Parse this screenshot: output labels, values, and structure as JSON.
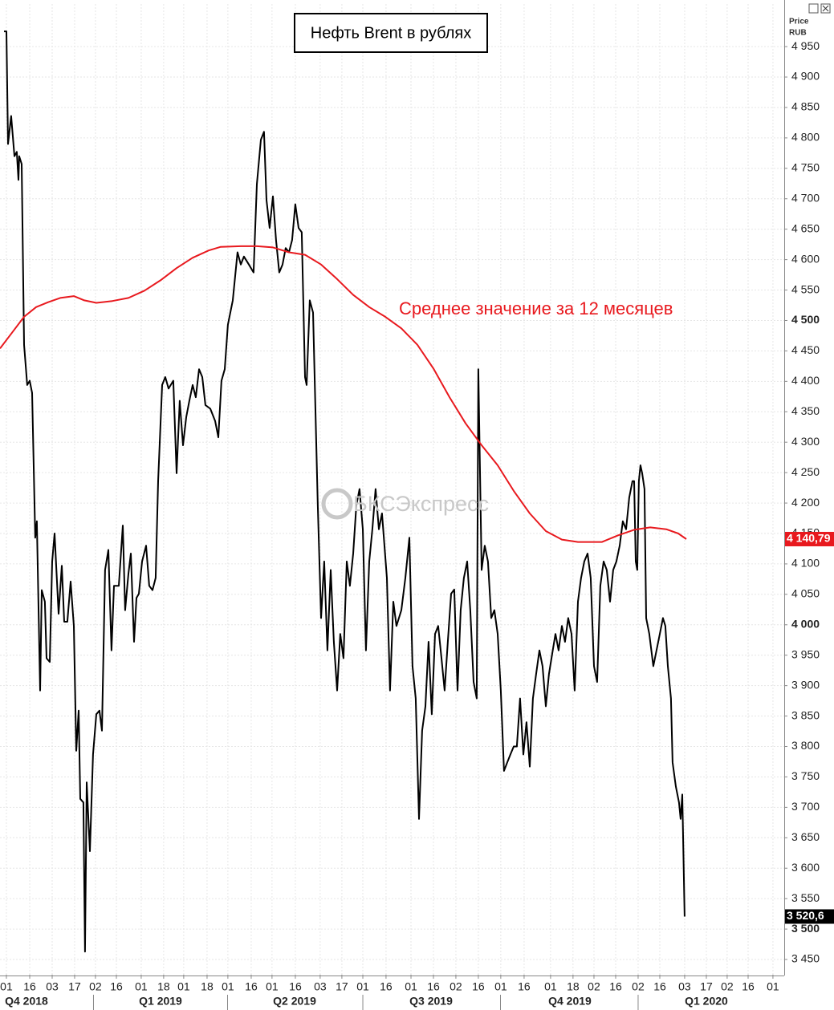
{
  "chart_data": {
    "type": "line",
    "title": "Нефть Brent в рублях",
    "annotation": "Среднее значение за 12 месяцев",
    "watermark": "БКСЭкспресс",
    "ylabel": "Price",
    "yunit": "RUB",
    "grid": true,
    "xlim": [
      -4.3,
      523.3
    ],
    "ylim": [
      3425,
      5020
    ],
    "yticks": [
      {
        "value": 3450,
        "label": "3 450"
      },
      {
        "value": 3500,
        "label": "3 500"
      },
      {
        "value": 3550,
        "label": "3 550"
      },
      {
        "value": 3600,
        "label": "3 600"
      },
      {
        "value": 3650,
        "label": "3 650"
      },
      {
        "value": 3700,
        "label": "3 700"
      },
      {
        "value": 3750,
        "label": "3 750"
      },
      {
        "value": 3800,
        "label": "3 800"
      },
      {
        "value": 3850,
        "label": "3 850"
      },
      {
        "value": 3900,
        "label": "3 900"
      },
      {
        "value": 3950,
        "label": "3 950"
      },
      {
        "value": 4000,
        "label": "4 000"
      },
      {
        "value": 4050,
        "label": "4 050"
      },
      {
        "value": 4100,
        "label": "4 100"
      },
      {
        "value": 4150,
        "label": "4 150"
      },
      {
        "value": 4200,
        "label": "4 200"
      },
      {
        "value": 4250,
        "label": "4 250"
      },
      {
        "value": 4300,
        "label": "4 300"
      },
      {
        "value": 4350,
        "label": "4 350"
      },
      {
        "value": 4400,
        "label": "4 400"
      },
      {
        "value": 4450,
        "label": "4 450"
      },
      {
        "value": 4500,
        "label": "4 500"
      },
      {
        "value": 4550,
        "label": "4 550"
      },
      {
        "value": 4600,
        "label": "4 600"
      },
      {
        "value": 4650,
        "label": "4 650"
      },
      {
        "value": 4700,
        "label": "4 700"
      },
      {
        "value": 4750,
        "label": "4 750"
      },
      {
        "value": 4800,
        "label": "4 800"
      },
      {
        "value": 4850,
        "label": "4 850"
      },
      {
        "value": 4900,
        "label": "4 900"
      },
      {
        "value": 4950,
        "label": "4 950"
      }
    ],
    "xticks": [
      {
        "value": 0,
        "label": "01"
      },
      {
        "value": 15.7,
        "label": "16"
      },
      {
        "value": 30.8,
        "label": "03"
      },
      {
        "value": 45.9,
        "label": "17"
      },
      {
        "value": 59.9,
        "label": "02"
      },
      {
        "value": 74.0,
        "label": "16"
      },
      {
        "value": 90.7,
        "label": "01"
      },
      {
        "value": 105.8,
        "label": "18"
      },
      {
        "value": 119.3,
        "label": "01"
      },
      {
        "value": 135.0,
        "label": "18"
      },
      {
        "value": 149.0,
        "label": "01"
      },
      {
        "value": 164.7,
        "label": "16"
      },
      {
        "value": 178.7,
        "label": "01"
      },
      {
        "value": 194.4,
        "label": "16"
      },
      {
        "value": 211.1,
        "label": "03"
      },
      {
        "value": 225.7,
        "label": "17"
      },
      {
        "value": 239.8,
        "label": "01"
      },
      {
        "value": 255.4,
        "label": "16"
      },
      {
        "value": 272.2,
        "label": "01"
      },
      {
        "value": 287.3,
        "label": "16"
      },
      {
        "value": 302.4,
        "label": "02"
      },
      {
        "value": 317.5,
        "label": "16"
      },
      {
        "value": 332.6,
        "label": "01"
      },
      {
        "value": 348.3,
        "label": "16"
      },
      {
        "value": 366.1,
        "label": "01"
      },
      {
        "value": 381.2,
        "label": "18"
      },
      {
        "value": 395.3,
        "label": "02"
      },
      {
        "value": 409.9,
        "label": "16"
      },
      {
        "value": 425.0,
        "label": "02"
      },
      {
        "value": 439.6,
        "label": "16"
      },
      {
        "value": 456.3,
        "label": "03"
      },
      {
        "value": 470.9,
        "label": "17"
      },
      {
        "value": 484.9,
        "label": "02"
      },
      {
        "value": 499.0,
        "label": "16"
      },
      {
        "value": 515.7,
        "label": "01"
      }
    ],
    "quarters": [
      {
        "value": 13.5,
        "label": "Q4 2018"
      },
      {
        "value": 103.7,
        "label": "Q1 2019"
      },
      {
        "value": 193.9,
        "label": "Q2 2019"
      },
      {
        "value": 285.7,
        "label": "Q3 2019"
      },
      {
        "value": 379.1,
        "label": "Q4 2019"
      },
      {
        "value": 470.9,
        "label": "Q1 2020"
      }
    ],
    "series": [
      {
        "color": "#000000",
        "last_value_label": "3 520,6",
        "x": [
          -1.6,
          0,
          1.1,
          3.2,
          5.4,
          7.0,
          8.1,
          8.6,
          10.3,
          11.9,
          14.0,
          15.7,
          17.3,
          19.4,
          20.5,
          22.7,
          23.8,
          25.9,
          27.0,
          29.2,
          30.8,
          32.4,
          35.1,
          37.3,
          38.9,
          41.0,
          43.2,
          45.4,
          47.0,
          48.6,
          49.7,
          51.8,
          52.9,
          54.0,
          56.2,
          58.3,
          60.5,
          62.6,
          64.3,
          66.4,
          68.6,
          70.7,
          72.4,
          75.6,
          78.3,
          79.9,
          82.1,
          83.7,
          85.9,
          87.5,
          89.1,
          91.3,
          94.0,
          96.1,
          98.3,
          100.4,
          102.1,
          104.8,
          106.9,
          109.1,
          112.3,
          114.5,
          116.6,
          118.8,
          121.0,
          123.1,
          125.3,
          127.4,
          129.6,
          131.8,
          133.9,
          137.2,
          140.4,
          142.6,
          144.7,
          146.9,
          149.0,
          152.3,
          155.5,
          157.7,
          159.8,
          163.1,
          166.3,
          168.5,
          171.2,
          173.3,
          175.0,
          177.1,
          179.3,
          181.4,
          183.6,
          185.8,
          187.9,
          190.1,
          192.2,
          194.4,
          196.6,
          198.7,
          200.9,
          202.0,
          204.1,
          206.3,
          209.5,
          211.7,
          213.8,
          216.0,
          218.2,
          220.3,
          222.5,
          224.6,
          226.8,
          229.0,
          231.1,
          233.3,
          235.4,
          237.6,
          239.8,
          241.9,
          244.1,
          246.2,
          248.4,
          250.6,
          252.7,
          256.0,
          258.1,
          260.3,
          262.4,
          265.7,
          268.4,
          271.1,
          273.2,
          275.4,
          277.6,
          279.7,
          281.9,
          284.0,
          286.2,
          288.4,
          290.5,
          292.7,
          294.8,
          297.0,
          299.2,
          301.3,
          303.5,
          305.6,
          307.8,
          310.0,
          312.1,
          314.3,
          316.4,
          317.5,
          319.7,
          321.8,
          324.0,
          326.2,
          328.3,
          330.5,
          332.6,
          334.8,
          337.0,
          339.1,
          341.3,
          343.4,
          345.6,
          347.8,
          349.9,
          352.1,
          354.2,
          356.4,
          358.6,
          360.7,
          362.9,
          365.0,
          367.2,
          369.4,
          371.5,
          373.7,
          375.8,
          378.0,
          380.2,
          382.3,
          384.5,
          386.6,
          388.8,
          391.0,
          393.1,
          395.3,
          397.4,
          399.6,
          401.8,
          403.9,
          406.1,
          408.2,
          410.4,
          412.6,
          414.7,
          416.9,
          419.0,
          421.2,
          422.3,
          423.4,
          424.4,
          425.5,
          426.6,
          427.7,
          429.3,
          430.4,
          432.5,
          435.2,
          437.4,
          439.6,
          441.7,
          443.3,
          445.0,
          447.1,
          448.2,
          450.4,
          452.5,
          453.6,
          454.7,
          456.3
        ],
        "values": [
          4975,
          4975,
          4790,
          4836,
          4770,
          4777,
          4731,
          4770,
          4757,
          4460,
          4394,
          4401,
          4381,
          4143,
          4170,
          3892,
          4057,
          4038,
          3945,
          3939,
          4104,
          4150,
          4018,
          4097,
          4005,
          4005,
          4071,
          3998,
          3793,
          3859,
          3714,
          3708,
          3463,
          3741,
          3628,
          3787,
          3853,
          3859,
          3826,
          4090,
          4123,
          3958,
          4064,
          4064,
          4163,
          4024,
          4084,
          4117,
          3972,
          4044,
          4051,
          4104,
          4130,
          4064,
          4057,
          4077,
          4236,
          4394,
          4407,
          4388,
          4401,
          4249,
          4368,
          4295,
          4341,
          4368,
          4394,
          4374,
          4420,
          4407,
          4361,
          4355,
          4335,
          4308,
          4401,
          4420,
          4493,
          4533,
          4612,
          4592,
          4605,
          4592,
          4579,
          4724,
          4797,
          4810,
          4698,
          4652,
          4704,
          4632,
          4579,
          4592,
          4619,
          4612,
          4632,
          4691,
          4652,
          4645,
          4407,
          4394,
          4533,
          4513,
          4196,
          4011,
          4104,
          3958,
          4090,
          3972,
          3892,
          3985,
          3945,
          4104,
          4064,
          4117,
          4196,
          4223,
          4157,
          3958,
          4104,
          4157,
          4223,
          4157,
          4183,
          4077,
          3892,
          4038,
          3998,
          4024,
          4077,
          4143,
          3932,
          3879,
          3681,
          3826,
          3866,
          3972,
          3853,
          3985,
          3998,
          3945,
          3892,
          3972,
          4051,
          4058,
          3892,
          4024,
          4077,
          4104,
          4024,
          3906,
          3879,
          4420,
          4090,
          4130,
          4104,
          4011,
          4024,
          3985,
          3892,
          3760,
          3774,
          3787,
          3800,
          3800,
          3879,
          3787,
          3840,
          3767,
          3879,
          3919,
          3958,
          3932,
          3866,
          3919,
          3952,
          3985,
          3958,
          3998,
          3972,
          4011,
          3985,
          3892,
          4038,
          4077,
          4104,
          4117,
          4077,
          3932,
          3906,
          4064,
          4104,
          4090,
          4038,
          4090,
          4104,
          4130,
          4170,
          4157,
          4209,
          4236,
          4236,
          4104,
          4090,
          4236,
          4262,
          4249,
          4223,
          4011,
          3985,
          3932,
          3958,
          3985,
          4011,
          3998,
          3932,
          3879,
          3774,
          3734,
          3708,
          3681,
          3721,
          3520.6
        ]
      },
      {
        "color": "#e8191e",
        "last_value_label": "4 140,79",
        "x": [
          -4.3,
          3.8,
          11.9,
          20.0,
          28.1,
          36.2,
          45.4,
          52.4,
          60.5,
          71.3,
          82.1,
          92.9,
          103.7,
          114.5,
          125.3,
          136.1,
          144.2,
          157.7,
          168.5,
          179.3,
          190.1,
          200.9,
          211.7,
          222.5,
          233.3,
          244.1,
          254.9,
          265.7,
          276.5,
          287.3,
          298.1,
          308.9,
          319.7,
          330.5,
          341.3,
          352.1,
          362.9,
          373.7,
          384.5,
          400.7,
          411.5,
          422.3,
          433.1,
          443.9,
          452.0,
          457.4
        ],
        "values": [
          4454,
          4480,
          4506,
          4522,
          4530,
          4537,
          4540,
          4533,
          4529,
          4532,
          4537,
          4549,
          4566,
          4586,
          4603,
          4615,
          4621,
          4622,
          4622,
          4620,
          4612,
          4608,
          4592,
          4568,
          4542,
          4522,
          4506,
          4487,
          4460,
          4421,
          4374,
          4331,
          4295,
          4262,
          4220,
          4183,
          4154,
          4140,
          4136,
          4136,
          4147,
          4156,
          4160,
          4157,
          4150,
          4140.79
        ]
      }
    ]
  }
}
